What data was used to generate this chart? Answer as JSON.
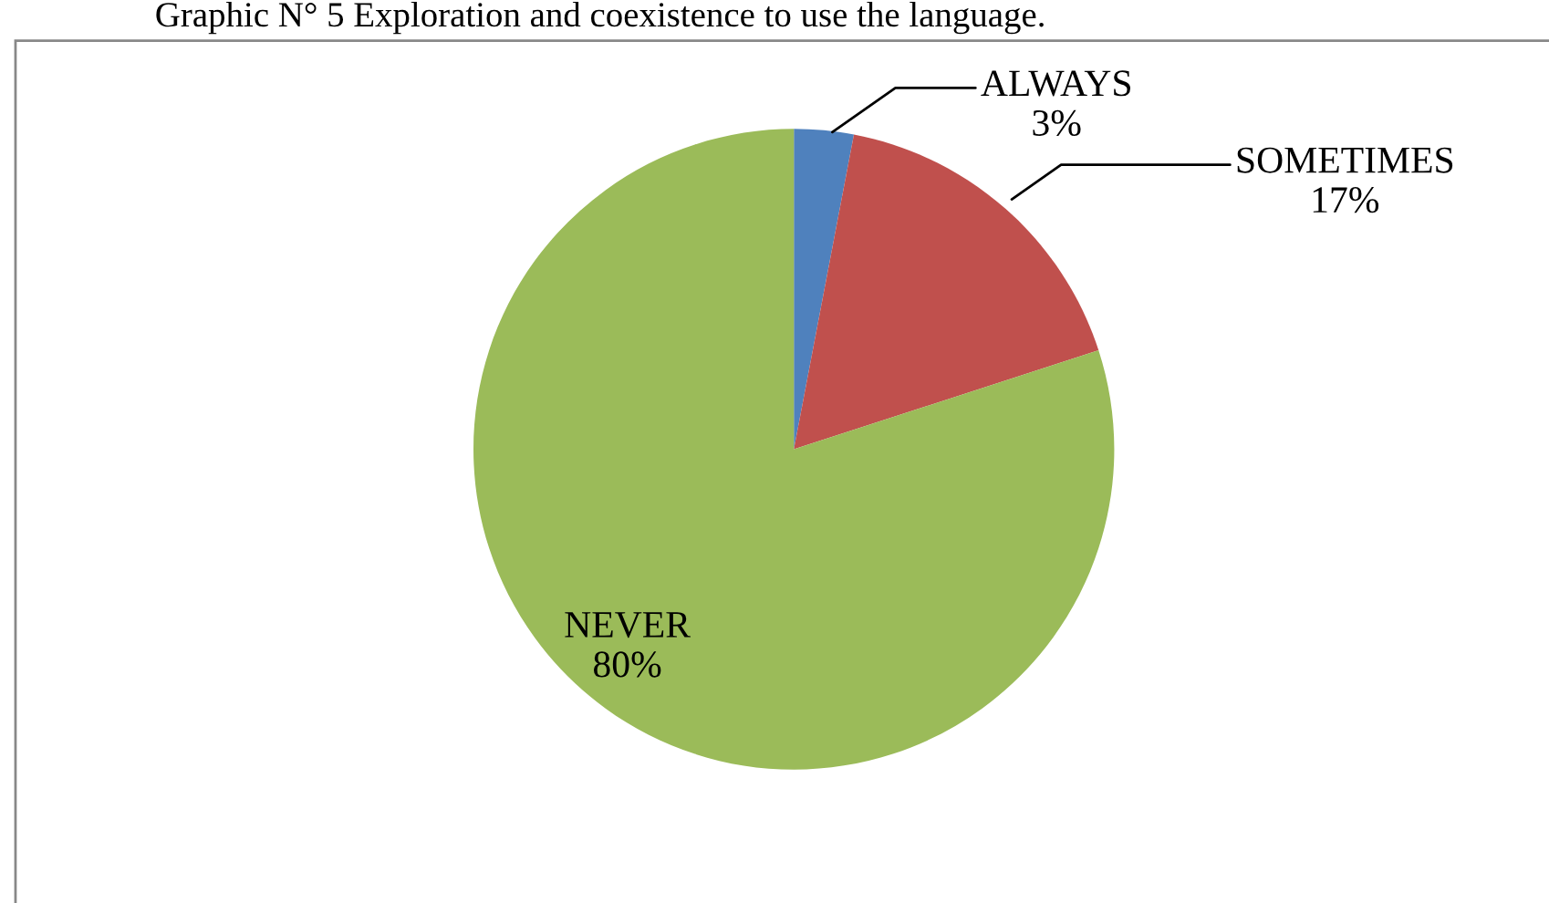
{
  "chart_data": {
    "type": "pie",
    "title": "Graphic N° 5 Exploration and coexistence to use the language.",
    "categories": [
      "ALWAYS",
      "SOMETIMES",
      "NEVER"
    ],
    "values": [
      3,
      17,
      80
    ],
    "value_labels": [
      "3%",
      "17%",
      "80%"
    ],
    "colors": [
      "#4f81bd",
      "#c0504d",
      "#9bbb59"
    ]
  }
}
